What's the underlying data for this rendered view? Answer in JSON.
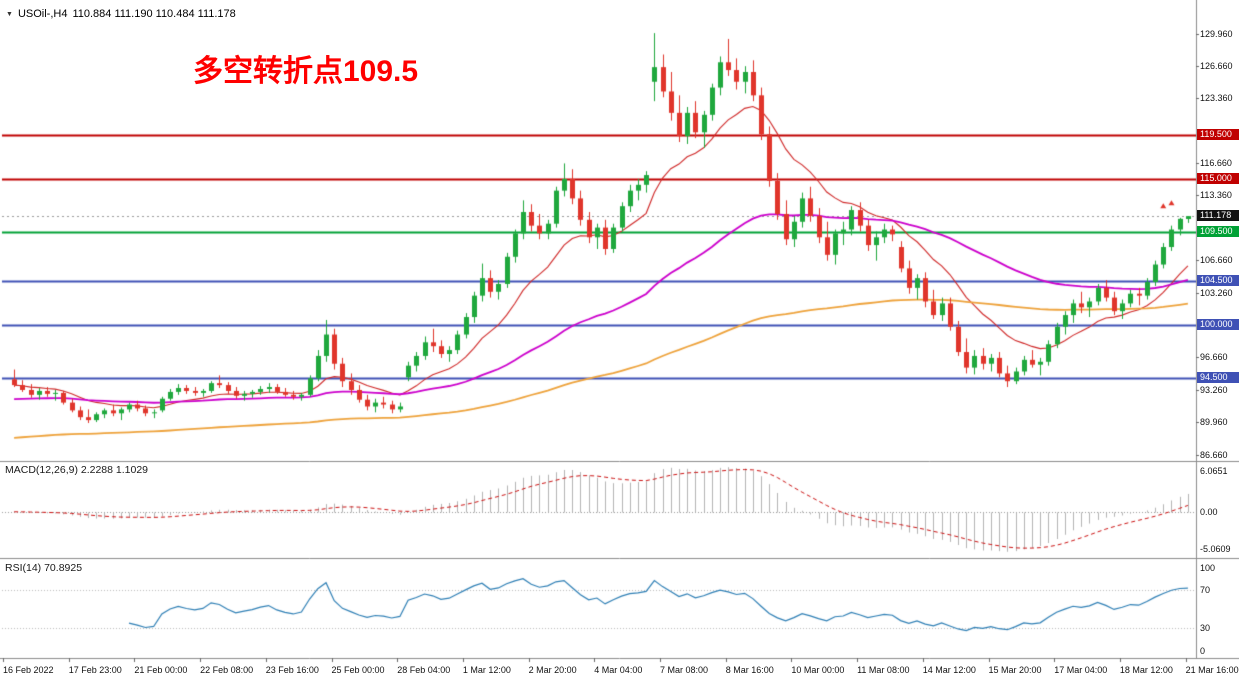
{
  "header": {
    "symbol": "USOil-,H4",
    "ohlc": "110.884 111.190 110.484 111.178"
  },
  "icons": {
    "dropdown": "▼"
  },
  "annotation": {
    "text": "多空转折点109.5",
    "color": "#ff0000"
  },
  "colors": {
    "background": "#ffffff",
    "bull": "#1fa83d",
    "bear": "#e0352b",
    "current_price_bg": "#111111",
    "axis_text": "#111111"
  },
  "chart_data": [
    {
      "type": "candlestick",
      "panel": "main",
      "title": "USOil-,H4",
      "ylim": [
        86.2,
        133.2
      ],
      "x_labels": [
        "16 Feb 2022",
        "17 Feb 23:00",
        "21 Feb 00:00",
        "22 Feb 08:00",
        "23 Feb 16:00",
        "25 Feb 00:00",
        "28 Feb 04:00",
        "1 Mar 12:00",
        "2 Mar 20:00",
        "4 Mar 04:00",
        "7 Mar 08:00",
        "8 Mar 16:00",
        "10 Mar 00:00",
        "11 Mar 08:00",
        "14 Mar 12:00",
        "15 Mar 20:00",
        "17 Mar 04:00",
        "18 Mar 12:00",
        "21 Mar 16:00"
      ],
      "y_ticks": [
        {
          "price": 129.96,
          "label": "129.960"
        },
        {
          "price": 126.66,
          "label": "126.660"
        },
        {
          "price": 123.36,
          "label": "123.360"
        },
        {
          "price": 116.66,
          "label": "116.660"
        },
        {
          "price": 113.36,
          "label": "113.360"
        },
        {
          "price": 106.66,
          "label": "106.660"
        },
        {
          "price": 103.26,
          "label": "103.260"
        },
        {
          "price": 96.66,
          "label": "96.660"
        },
        {
          "price": 93.26,
          "label": "93.260"
        },
        {
          "price": 89.96,
          "label": "89.960"
        },
        {
          "price": 86.66,
          "label": "86.660"
        }
      ],
      "levels": [
        {
          "price": 119.5,
          "label": "119.500",
          "color": "#c00000"
        },
        {
          "price": 115.0,
          "label": "115.000",
          "color": "#c00000"
        },
        {
          "price": 109.5,
          "label": "109.500",
          "color": "#00a135"
        },
        {
          "price": 104.5,
          "label": "104.500",
          "color": "#3f51b5"
        },
        {
          "price": 100.0,
          "label": "100.000",
          "color": "#3f51b5"
        },
        {
          "price": 94.5,
          "label": "94.500",
          "color": "#3f51b5"
        }
      ],
      "current_price": {
        "price": 111.178,
        "label": "111.178"
      },
      "moving_averages": [
        {
          "name": "fast",
          "color": "#d02828"
        },
        {
          "name": "medium",
          "color": "#cc00cc"
        },
        {
          "name": "slow",
          "color": "#eea33c"
        }
      ],
      "markers": [
        {
          "bar": 140,
          "price": 112.2
        },
        {
          "bar": 141,
          "price": 112.5
        }
      ],
      "ohlc": [
        [
          94.4,
          95.4,
          93.6,
          93.8
        ],
        [
          93.8,
          94.3,
          93.1,
          93.3
        ],
        [
          93.3,
          93.9,
          92.5,
          92.8
        ],
        [
          92.8,
          93.5,
          92.3,
          93.2
        ],
        [
          93.2,
          93.6,
          92.6,
          92.9
        ],
        [
          92.9,
          93.3,
          92.2,
          93.0
        ],
        [
          93.0,
          93.2,
          91.8,
          92.0
        ],
        [
          92.0,
          92.4,
          91.0,
          91.2
        ],
        [
          91.2,
          91.6,
          90.2,
          90.5
        ],
        [
          90.5,
          91.3,
          89.9,
          90.2
        ],
        [
          90.2,
          91.0,
          90.0,
          90.8
        ],
        [
          90.8,
          91.4,
          90.4,
          91.2
        ],
        [
          91.2,
          91.8,
          90.6,
          90.9
        ],
        [
          90.9,
          91.5,
          90.2,
          91.3
        ],
        [
          91.3,
          92.0,
          91.0,
          91.8
        ],
        [
          91.8,
          92.2,
          91.1,
          91.4
        ],
        [
          91.4,
          91.7,
          90.6,
          90.9
        ],
        [
          90.9,
          91.3,
          90.4,
          91.0
        ],
        [
          91.2,
          92.6,
          91.0,
          92.4
        ],
        [
          92.4,
          93.4,
          92.2,
          93.1
        ],
        [
          93.1,
          93.9,
          92.8,
          93.5
        ],
        [
          93.5,
          93.8,
          92.9,
          93.2
        ],
        [
          93.2,
          93.6,
          92.7,
          93.0
        ],
        [
          93.0,
          93.4,
          92.6,
          93.2
        ],
        [
          93.2,
          94.2,
          93.0,
          94.0
        ],
        [
          94.0,
          94.8,
          93.5,
          93.8
        ],
        [
          93.8,
          94.1,
          92.9,
          93.2
        ],
        [
          93.2,
          93.6,
          92.4,
          92.7
        ],
        [
          92.7,
          93.2,
          92.2,
          92.9
        ],
        [
          92.9,
          93.3,
          92.5,
          93.1
        ],
        [
          93.1,
          93.7,
          92.8,
          93.4
        ],
        [
          93.4,
          94.0,
          93.0,
          93.6
        ],
        [
          93.6,
          93.9,
          92.9,
          93.1
        ],
        [
          93.1,
          93.5,
          92.6,
          92.8
        ],
        [
          92.8,
          93.2,
          92.3,
          92.6
        ],
        [
          92.6,
          93.0,
          92.2,
          92.8
        ],
        [
          92.8,
          94.8,
          92.6,
          94.5
        ],
        [
          94.5,
          97.4,
          94.2,
          96.8
        ],
        [
          96.8,
          100.5,
          96.2,
          99.0
        ],
        [
          99.0,
          99.6,
          95.4,
          96.0
        ],
        [
          96.0,
          96.6,
          93.6,
          94.2
        ],
        [
          94.2,
          95.0,
          92.8,
          93.3
        ],
        [
          93.3,
          93.8,
          92.0,
          92.3
        ],
        [
          92.3,
          92.8,
          91.2,
          91.6
        ],
        [
          91.6,
          92.4,
          91.0,
          92.0
        ],
        [
          92.0,
          92.6,
          91.4,
          91.8
        ],
        [
          91.8,
          92.2,
          90.9,
          91.3
        ],
        [
          91.3,
          92.0,
          91.0,
          91.6
        ],
        [
          94.6,
          96.2,
          94.2,
          95.8
        ],
        [
          95.8,
          97.2,
          95.2,
          96.8
        ],
        [
          96.8,
          98.8,
          96.4,
          98.2
        ],
        [
          98.2,
          99.6,
          97.2,
          97.8
        ],
        [
          97.8,
          98.4,
          96.6,
          97.0
        ],
        [
          97.0,
          97.8,
          96.2,
          97.4
        ],
        [
          97.4,
          99.4,
          97.0,
          99.0
        ],
        [
          99.0,
          101.2,
          98.6,
          100.8
        ],
        [
          100.8,
          103.4,
          100.2,
          103.0
        ],
        [
          103.0,
          106.3,
          102.4,
          104.8
        ],
        [
          104.8,
          105.6,
          102.8,
          103.4
        ],
        [
          103.4,
          104.6,
          102.6,
          104.2
        ],
        [
          104.2,
          107.4,
          103.8,
          107.0
        ],
        [
          107.0,
          109.8,
          106.4,
          109.4
        ],
        [
          109.4,
          112.8,
          108.8,
          111.6
        ],
        [
          111.6,
          112.4,
          109.6,
          110.2
        ],
        [
          110.2,
          111.4,
          108.8,
          109.4
        ],
        [
          109.4,
          110.8,
          108.8,
          110.4
        ],
        [
          110.4,
          114.2,
          110.0,
          113.8
        ],
        [
          113.8,
          116.6,
          113.2,
          115.0
        ],
        [
          115.0,
          116.0,
          112.4,
          113.0
        ],
        [
          113.0,
          113.8,
          110.2,
          110.8
        ],
        [
          110.8,
          111.6,
          108.4,
          109.0
        ],
        [
          109.0,
          110.4,
          107.8,
          110.0
        ],
        [
          110.0,
          110.8,
          107.2,
          107.8
        ],
        [
          107.8,
          110.4,
          107.4,
          110.0
        ],
        [
          110.0,
          112.6,
          109.6,
          112.2
        ],
        [
          112.2,
          114.4,
          111.6,
          113.8
        ],
        [
          113.8,
          115.0,
          112.8,
          114.4
        ],
        [
          114.4,
          115.8,
          113.6,
          115.4
        ],
        [
          125.0,
          130.0,
          123.0,
          126.5
        ],
        [
          126.5,
          127.8,
          123.4,
          124.0
        ],
        [
          124.0,
          126.0,
          121.0,
          121.8
        ],
        [
          121.8,
          123.6,
          118.8,
          119.4
        ],
        [
          119.4,
          122.4,
          118.6,
          121.8
        ],
        [
          121.8,
          123.0,
          119.2,
          119.8
        ],
        [
          119.8,
          122.0,
          118.2,
          121.6
        ],
        [
          121.6,
          124.8,
          121.0,
          124.4
        ],
        [
          124.4,
          127.6,
          123.6,
          127.0
        ],
        [
          127.0,
          129.4,
          125.6,
          126.2
        ],
        [
          126.2,
          127.4,
          124.2,
          125.0
        ],
        [
          125.0,
          126.6,
          123.8,
          126.0
        ],
        [
          126.0,
          127.2,
          123.0,
          123.6
        ],
        [
          123.6,
          124.4,
          119.0,
          119.6
        ],
        [
          119.6,
          120.4,
          114.2,
          114.8
        ],
        [
          114.8,
          115.6,
          110.8,
          111.4
        ],
        [
          111.4,
          112.8,
          108.2,
          108.8
        ],
        [
          108.8,
          111.2,
          108.0,
          110.6
        ],
        [
          110.6,
          113.6,
          110.0,
          113.0
        ],
        [
          113.0,
          114.2,
          110.6,
          111.2
        ],
        [
          111.2,
          112.0,
          108.4,
          109.0
        ],
        [
          109.0,
          110.6,
          106.6,
          107.2
        ],
        [
          107.2,
          109.8,
          106.2,
          109.4
        ],
        [
          109.4,
          110.6,
          108.2,
          109.8
        ],
        [
          109.8,
          112.2,
          109.2,
          111.8
        ],
        [
          111.8,
          112.6,
          109.6,
          110.2
        ],
        [
          110.2,
          110.8,
          107.6,
          108.2
        ],
        [
          108.2,
          109.6,
          106.6,
          109.0
        ],
        [
          109.0,
          110.4,
          108.4,
          109.8
        ],
        [
          109.8,
          110.2,
          108.6,
          109.3
        ],
        [
          108.0,
          108.6,
          105.4,
          105.8
        ],
        [
          105.8,
          106.6,
          103.2,
          103.8
        ],
        [
          103.8,
          105.2,
          102.6,
          104.8
        ],
        [
          104.8,
          105.4,
          101.8,
          102.4
        ],
        [
          102.4,
          103.6,
          100.6,
          101.0
        ],
        [
          101.0,
          102.8,
          100.4,
          102.2
        ],
        [
          102.2,
          102.8,
          99.4,
          99.8
        ],
        [
          99.8,
          100.4,
          96.8,
          97.2
        ],
        [
          97.2,
          98.6,
          95.0,
          95.6
        ],
        [
          95.6,
          97.4,
          94.9,
          96.8
        ],
        [
          96.8,
          97.6,
          95.4,
          96.0
        ],
        [
          96.0,
          97.0,
          95.2,
          96.6
        ],
        [
          96.6,
          97.2,
          94.6,
          95.0
        ],
        [
          95.0,
          95.8,
          93.6,
          94.2
        ],
        [
          94.2,
          95.6,
          93.9,
          95.2
        ],
        [
          95.2,
          96.8,
          94.8,
          96.4
        ],
        [
          96.4,
          97.4,
          95.6,
          95.9
        ],
        [
          95.9,
          96.6,
          94.8,
          96.2
        ],
        [
          96.2,
          98.4,
          95.8,
          98.0
        ],
        [
          98.0,
          100.2,
          97.6,
          99.8
        ],
        [
          99.8,
          101.4,
          99.0,
          101.0
        ],
        [
          101.0,
          102.6,
          100.2,
          102.2
        ],
        [
          102.2,
          103.4,
          101.2,
          101.8
        ],
        [
          101.8,
          102.8,
          100.8,
          102.4
        ],
        [
          102.4,
          104.2,
          102.0,
          103.8
        ],
        [
          103.8,
          104.6,
          102.4,
          102.8
        ],
        [
          102.8,
          103.4,
          101.0,
          101.4
        ],
        [
          101.4,
          102.6,
          100.6,
          102.2
        ],
        [
          102.2,
          103.6,
          101.8,
          103.2
        ],
        [
          103.2,
          103.8,
          102.0,
          103.0
        ],
        [
          103.0,
          104.8,
          102.6,
          104.4
        ],
        [
          104.4,
          106.6,
          104.0,
          106.2
        ],
        [
          106.2,
          108.4,
          105.8,
          108.0
        ],
        [
          108.0,
          110.2,
          107.6,
          109.8
        ],
        [
          109.8,
          111.0,
          109.2,
          110.9
        ],
        [
          110.884,
          111.19,
          110.484,
          111.178
        ]
      ]
    },
    {
      "type": "bar",
      "panel": "macd",
      "name": "MACD",
      "label": "MACD(12,26,9) 2.2288 1.1029",
      "params": {
        "fast": 12,
        "slow": 26,
        "signal": 9
      },
      "current_values": {
        "macd": 2.2288,
        "signal": 1.1029
      },
      "y_tick_labels": [
        "6.0651",
        "0.00",
        "-5.0609"
      ],
      "colors": {
        "histogram": "#b3b3b3",
        "signal": "#cc1111"
      }
    },
    {
      "type": "line",
      "panel": "rsi",
      "name": "RSI",
      "label": "RSI(14) 70.8925",
      "params": {
        "period": 14
      },
      "current_value": 70.8925,
      "y_tick_labels": [
        "100",
        "70",
        "30",
        "0"
      ],
      "levels": [
        70,
        30
      ],
      "color": "#2e7fb5"
    }
  ]
}
